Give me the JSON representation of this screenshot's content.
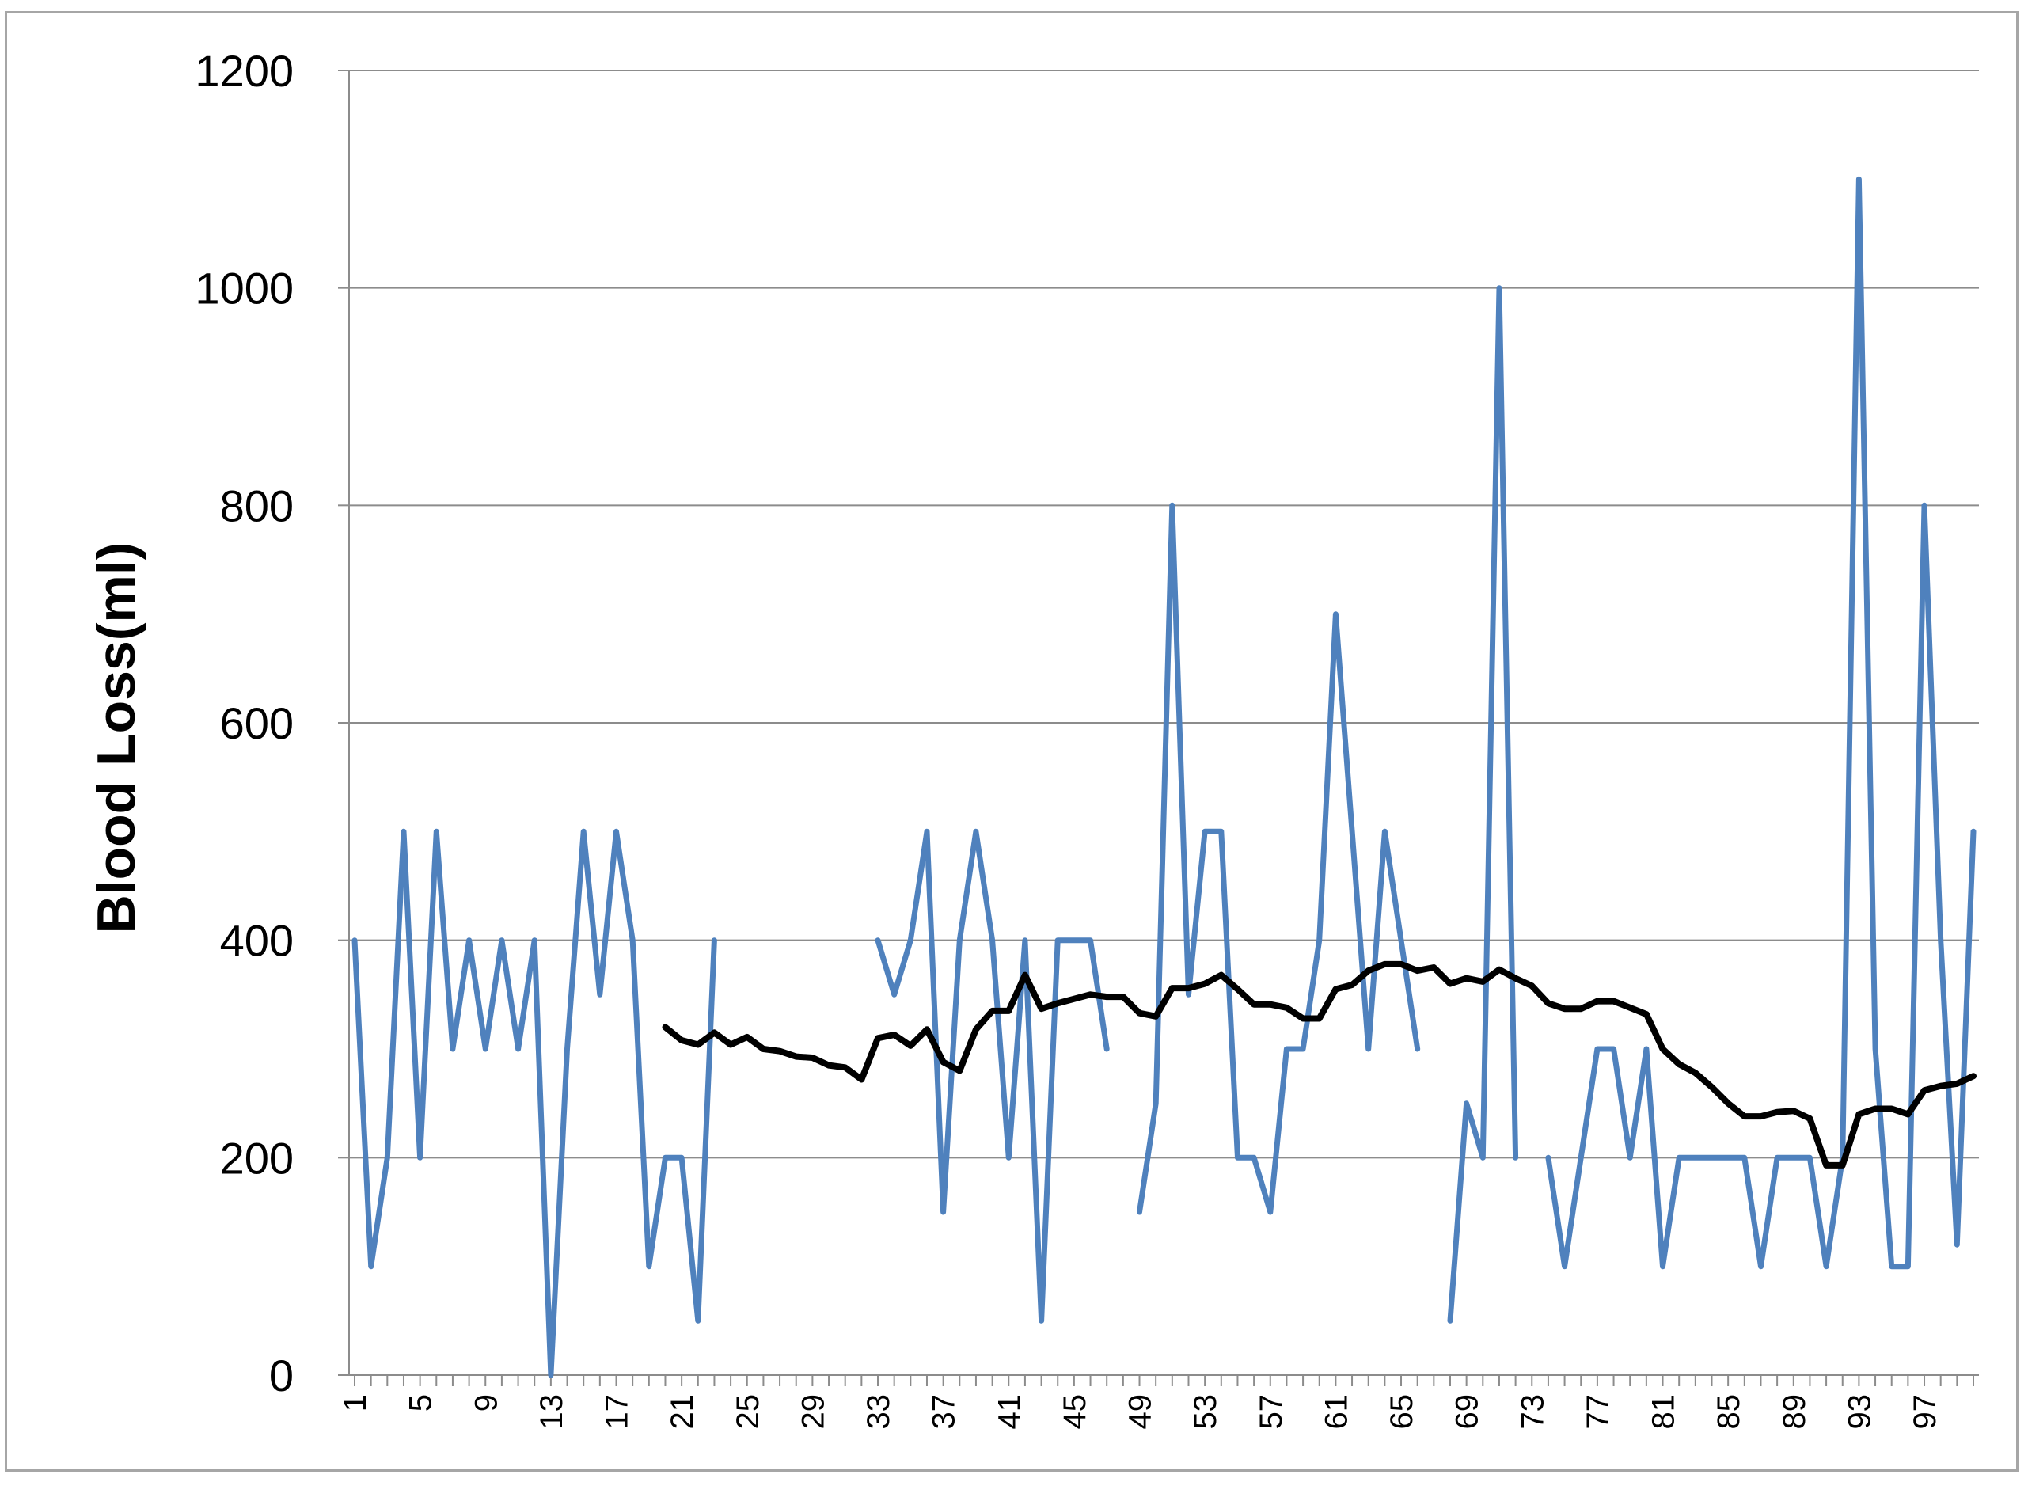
{
  "chart_data": {
    "type": "line",
    "title": "",
    "xlabel": "",
    "ylabel": "Blood Loss(ml)",
    "ylim": [
      0,
      1200
    ],
    "yticks": [
      0,
      200,
      400,
      600,
      800,
      1000,
      1200
    ],
    "xlim": [
      1,
      100
    ],
    "x_tick_labels": [
      "1",
      "5",
      "9",
      "13",
      "17",
      "21",
      "25",
      "29",
      "33",
      "37",
      "41",
      "45",
      "49",
      "53",
      "57",
      "61",
      "65",
      "69",
      "73",
      "77",
      "81",
      "85",
      "89",
      "93",
      "97"
    ],
    "grid": "horizontal",
    "legend": "none",
    "series": [
      {
        "color": "#4f81bd",
        "values": [
          400,
          100,
          200,
          500,
          200,
          500,
          300,
          400,
          300,
          400,
          300,
          400,
          0,
          300,
          500,
          350,
          500,
          400,
          100,
          200,
          200,
          50,
          400,
          null,
          null,
          null,
          null,
          null,
          null,
          null,
          null,
          null,
          400,
          350,
          400,
          500,
          150,
          400,
          500,
          400,
          200,
          400,
          50,
          400,
          400,
          400,
          300,
          null,
          150,
          250,
          800,
          350,
          500,
          500,
          200,
          200,
          150,
          300,
          300,
          400,
          700,
          500,
          300,
          500,
          400,
          300,
          null,
          50,
          250,
          200,
          1000,
          200,
          null,
          200,
          100,
          200,
          300,
          300,
          200,
          300,
          100,
          200,
          200,
          200,
          200,
          200,
          100,
          200,
          200,
          200,
          100,
          200,
          1100,
          300,
          100,
          100,
          800,
          400,
          120,
          500
        ]
      },
      {
        "color": "#000000",
        "values": [
          null,
          null,
          null,
          null,
          null,
          null,
          null,
          null,
          null,
          null,
          null,
          null,
          null,
          null,
          null,
          null,
          null,
          null,
          null,
          320,
          308,
          304,
          315,
          304,
          311,
          300,
          298,
          293,
          292,
          285,
          283,
          272,
          310,
          313,
          303,
          318,
          288,
          280,
          318,
          335,
          335,
          368,
          337,
          342,
          346,
          350,
          348,
          348,
          333,
          330,
          356,
          356,
          360,
          368,
          355,
          341,
          341,
          338,
          328,
          328,
          355,
          359,
          372,
          378,
          378,
          372,
          375,
          360,
          365,
          362,
          373,
          365,
          358,
          342,
          337,
          337,
          344,
          344,
          338,
          332,
          300,
          286,
          278,
          265,
          250,
          238,
          238,
          242,
          243,
          236,
          193,
          193,
          240,
          245,
          245,
          240,
          262,
          266,
          268,
          275
        ]
      }
    ]
  }
}
